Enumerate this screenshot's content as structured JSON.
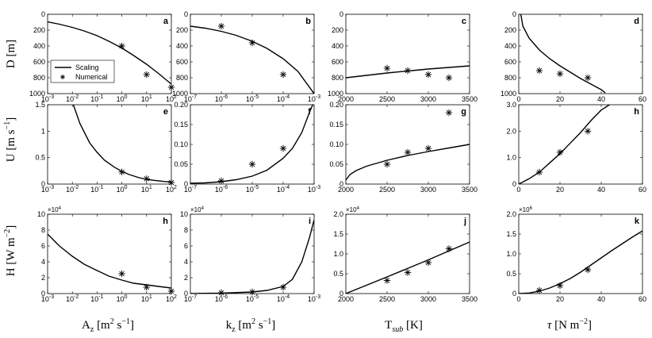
{
  "legend": {
    "line_label": "Scaling",
    "marker_label": "Numerical"
  },
  "row_labels": [
    {
      "main": "D",
      "unit": "[m]"
    },
    {
      "main": "U",
      "unit": "[m s",
      "sup": "−1",
      "close": "]"
    },
    {
      "main": "H",
      "unit": "[W m",
      "sup": "−2",
      "close": "]"
    }
  ],
  "col_labels": [
    {
      "main": "A",
      "sub": "z",
      "unit": "[m",
      "sup1": "2",
      "mid": " s",
      "sup2": "−1",
      "close": "]"
    },
    {
      "main": "k",
      "sub": "z",
      "unit": "[m",
      "sup1": "2",
      "mid": " s",
      "sup2": "−1",
      "close": "]"
    },
    {
      "main": "T",
      "sub": "sub",
      "unit": "[K]"
    },
    {
      "main": "τ",
      "unit": "[N m",
      "sup1": "−2",
      "close": "]"
    }
  ],
  "chart_data": [
    {
      "id": "a",
      "type": "line+scatter",
      "xscale": "log",
      "xlim": [
        0.001,
        100
      ],
      "ylim": [
        0,
        1000
      ],
      "yreverse": true,
      "xticks": [
        {
          "v": 0.001,
          "b": "10",
          "e": "-3"
        },
        {
          "v": 0.01,
          "b": "10",
          "e": "-2"
        },
        {
          "v": 0.1,
          "b": "10",
          "e": "-1"
        },
        {
          "v": 1,
          "b": "10",
          "e": "0"
        },
        {
          "v": 10,
          "b": "10",
          "e": "1"
        },
        {
          "v": 100,
          "b": "10",
          "e": "2"
        }
      ],
      "yticks": [
        {
          "v": 0,
          "t": "0"
        },
        {
          "v": 200,
          "t": "200"
        },
        {
          "v": 400,
          "t": "400"
        },
        {
          "v": 600,
          "t": "600"
        },
        {
          "v": 800,
          "t": "800"
        },
        {
          "v": 1000,
          "t": "1000"
        }
      ],
      "line": {
        "x": [
          0.001,
          0.003,
          0.01,
          0.03,
          0.1,
          0.3,
          1,
          3,
          10,
          30,
          100
        ],
        "y": [
          95,
          125,
          165,
          210,
          270,
          340,
          425,
          520,
          630,
          745,
          880
        ]
      },
      "points": {
        "x": [
          1,
          10,
          100
        ],
        "y": [
          400,
          760,
          920
        ]
      },
      "legend": true
    },
    {
      "id": "b",
      "type": "line+scatter",
      "xscale": "log",
      "xlim": [
        1e-07,
        0.001
      ],
      "ylim": [
        0,
        1000
      ],
      "yreverse": true,
      "xticks": [
        {
          "v": 1e-07,
          "b": "10",
          "e": "-7"
        },
        {
          "v": 1e-06,
          "b": "10",
          "e": "-6"
        },
        {
          "v": 1e-05,
          "b": "10",
          "e": "-5"
        },
        {
          "v": 0.0001,
          "b": "10",
          "e": "-4"
        },
        {
          "v": 0.001,
          "b": "10",
          "e": "-3"
        }
      ],
      "yticks": [
        {
          "v": 0,
          "t": "0"
        },
        {
          "v": 200,
          "t": "200"
        },
        {
          "v": 400,
          "t": "400"
        },
        {
          "v": 600,
          "t": "600"
        },
        {
          "v": 800,
          "t": "800"
        },
        {
          "v": 1000,
          "t": "1000"
        }
      ],
      "line": {
        "x": [
          1e-07,
          3e-07,
          1e-06,
          3e-06,
          1e-05,
          3e-05,
          0.0001,
          0.0003,
          0.001
        ],
        "y": [
          150,
          175,
          215,
          265,
          340,
          430,
          560,
          720,
          1000
        ]
      },
      "points": {
        "x": [
          1e-06,
          1e-05,
          0.0001
        ],
        "y": [
          150,
          360,
          760
        ]
      }
    },
    {
      "id": "c",
      "type": "line+scatter",
      "xscale": "linear",
      "xlim": [
        2000,
        3500
      ],
      "ylim": [
        0,
        1000
      ],
      "yreverse": true,
      "xticks": [
        {
          "v": 2000,
          "t": "2000"
        },
        {
          "v": 2500,
          "t": "2500"
        },
        {
          "v": 3000,
          "t": "3000"
        },
        {
          "v": 3500,
          "t": "3500"
        }
      ],
      "yticks": [
        {
          "v": 0,
          "t": "0"
        },
        {
          "v": 200,
          "t": "200"
        },
        {
          "v": 400,
          "t": "400"
        },
        {
          "v": 600,
          "t": "600"
        },
        {
          "v": 800,
          "t": "800"
        },
        {
          "v": 1000,
          "t": "1000"
        }
      ],
      "line": {
        "x": [
          2000,
          2250,
          2500,
          2750,
          3000,
          3250,
          3500
        ],
        "y": [
          800,
          770,
          740,
          715,
          690,
          670,
          650
        ]
      },
      "points": {
        "x": [
          2500,
          2750,
          3000,
          3250
        ],
        "y": [
          680,
          710,
          760,
          800
        ]
      }
    },
    {
      "id": "d",
      "type": "line+scatter",
      "xscale": "linear",
      "xlim": [
        0,
        60
      ],
      "ylim": [
        0,
        1000
      ],
      "yreverse": true,
      "xticks": [
        {
          "v": 0,
          "t": "0"
        },
        {
          "v": 20,
          "t": "20"
        },
        {
          "v": 40,
          "t": "40"
        },
        {
          "v": 60,
          "t": "60"
        }
      ],
      "yticks": [
        {
          "v": 0,
          "t": "0"
        },
        {
          "v": 200,
          "t": "200"
        },
        {
          "v": 400,
          "t": "400"
        },
        {
          "v": 600,
          "t": "600"
        },
        {
          "v": 800,
          "t": "800"
        },
        {
          "v": 1000,
          "t": "1000"
        }
      ],
      "line": {
        "x": [
          1,
          2,
          5,
          10,
          15,
          20,
          25,
          30,
          35,
          40,
          42
        ],
        "y": [
          0,
          150,
          300,
          450,
          560,
          650,
          730,
          810,
          880,
          950,
          990
        ]
      },
      "points": {
        "x": [
          10,
          20,
          33.5
        ],
        "y": [
          710,
          750,
          800
        ]
      }
    },
    {
      "id": "e",
      "type": "line+scatter",
      "xscale": "log",
      "xlim": [
        0.001,
        100
      ],
      "ylim": [
        0,
        1.5
      ],
      "xticks": [
        {
          "v": 0.001,
          "b": "10",
          "e": "-3"
        },
        {
          "v": 0.01,
          "b": "10",
          "e": "-2"
        },
        {
          "v": 0.1,
          "b": "10",
          "e": "-1"
        },
        {
          "v": 1,
          "b": "10",
          "e": "0"
        },
        {
          "v": 10,
          "b": "10",
          "e": "1"
        },
        {
          "v": 100,
          "b": "10",
          "e": "2"
        }
      ],
      "yticks": [
        {
          "v": 0,
          "t": "0"
        },
        {
          "v": 0.5,
          "t": "0.5"
        },
        {
          "v": 1,
          "t": "1"
        },
        {
          "v": 1.5,
          "t": "1.5"
        }
      ],
      "line": {
        "x": [
          0.011,
          0.02,
          0.05,
          0.1,
          0.2,
          0.5,
          1,
          2,
          5,
          10,
          20,
          50,
          100
        ],
        "y": [
          1.5,
          1.15,
          0.78,
          0.6,
          0.45,
          0.32,
          0.24,
          0.18,
          0.12,
          0.09,
          0.07,
          0.05,
          0.04
        ]
      },
      "points": {
        "x": [
          1,
          10,
          100
        ],
        "y": [
          0.23,
          0.1,
          0.03
        ]
      }
    },
    {
      "id": "f",
      "type": "line+scatter",
      "xscale": "log",
      "xlim": [
        1e-07,
        0.001
      ],
      "ylim": [
        0,
        0.2
      ],
      "xticks": [
        {
          "v": 1e-07,
          "b": "10",
          "e": "-7"
        },
        {
          "v": 1e-06,
          "b": "10",
          "e": "-6"
        },
        {
          "v": 1e-05,
          "b": "10",
          "e": "-5"
        },
        {
          "v": 0.0001,
          "b": "10",
          "e": "-4"
        },
        {
          "v": 0.001,
          "b": "10",
          "e": "-3"
        }
      ],
      "yticks": [
        {
          "v": 0,
          "t": "0"
        },
        {
          "v": 0.05,
          "t": "0.05"
        },
        {
          "v": 0.1,
          "t": "0.10"
        },
        {
          "v": 0.15,
          "t": "0.15"
        },
        {
          "v": 0.2,
          "t": "0.20"
        }
      ],
      "line": {
        "x": [
          1e-07,
          3e-07,
          1e-06,
          3e-06,
          1e-05,
          3e-05,
          0.0001,
          0.0002,
          0.0004,
          0.0007,
          0.0009
        ],
        "y": [
          0.002,
          0.003,
          0.006,
          0.011,
          0.02,
          0.035,
          0.065,
          0.09,
          0.13,
          0.18,
          0.2
        ]
      },
      "points": {
        "x": [
          1e-06,
          1e-05,
          0.0001
        ],
        "y": [
          0.008,
          0.05,
          0.09
        ]
      }
    },
    {
      "id": "g",
      "type": "line+scatter",
      "xscale": "linear",
      "xlim": [
        2000,
        3500
      ],
      "ylim": [
        0,
        0.2
      ],
      "xticks": [
        {
          "v": 2000,
          "t": "2000"
        },
        {
          "v": 2500,
          "t": "2500"
        },
        {
          "v": 3000,
          "t": "3000"
        },
        {
          "v": 3500,
          "t": "3500"
        }
      ],
      "yticks": [
        {
          "v": 0,
          "t": "0"
        },
        {
          "v": 0.05,
          "t": "0.05"
        },
        {
          "v": 0.1,
          "t": "0.10"
        },
        {
          "v": 0.15,
          "t": "0.15"
        },
        {
          "v": 0.2,
          "t": "0.20"
        }
      ],
      "line": {
        "x": [
          2000,
          2050,
          2125,
          2250,
          2500,
          2750,
          3000,
          3250,
          3500
        ],
        "y": [
          0.01,
          0.024,
          0.034,
          0.045,
          0.06,
          0.072,
          0.082,
          0.091,
          0.1
        ]
      },
      "points": {
        "x": [
          2500,
          2750,
          3000,
          3250
        ],
        "y": [
          0.05,
          0.08,
          0.09,
          0.18
        ]
      }
    },
    {
      "id": "h",
      "type": "line+scatter",
      "xscale": "linear",
      "xlim": [
        0,
        60
      ],
      "ylim": [
        0,
        3
      ],
      "xticks": [
        {
          "v": 0,
          "t": "0"
        },
        {
          "v": 20,
          "t": "20"
        },
        {
          "v": 40,
          "t": "40"
        },
        {
          "v": 60,
          "t": "60"
        }
      ],
      "yticks": [
        {
          "v": 0,
          "t": "0"
        },
        {
          "v": 1,
          "t": "1.0"
        },
        {
          "v": 2,
          "t": "2.0"
        },
        {
          "v": 3,
          "t": "3.0"
        }
      ],
      "line": {
        "x": [
          0,
          5,
          10,
          15,
          20,
          25,
          30,
          35,
          40,
          44
        ],
        "y": [
          0,
          0.2,
          0.45,
          0.8,
          1.15,
          1.55,
          1.95,
          2.4,
          2.8,
          3.0
        ]
      },
      "points": {
        "x": [
          10,
          20,
          33.5
        ],
        "y": [
          0.45,
          1.2,
          2.0
        ]
      }
    },
    {
      "id": "h",
      "type": "line+scatter",
      "xscale": "log",
      "xlim": [
        0.001,
        100
      ],
      "ylim": [
        0,
        100000
      ],
      "multiplier": {
        "b": "×10",
        "e": "4"
      },
      "xticks": [
        {
          "v": 0.001,
          "b": "10",
          "e": "-3"
        },
        {
          "v": 0.01,
          "b": "10",
          "e": "-2"
        },
        {
          "v": 0.1,
          "b": "10",
          "e": "-1"
        },
        {
          "v": 1,
          "b": "10",
          "e": "0"
        },
        {
          "v": 10,
          "b": "10",
          "e": "1"
        },
        {
          "v": 100,
          "b": "10",
          "e": "2"
        }
      ],
      "yticks": [
        {
          "v": 0,
          "t": "0"
        },
        {
          "v": 20000,
          "t": "2"
        },
        {
          "v": 40000,
          "t": "4"
        },
        {
          "v": 60000,
          "t": "6"
        },
        {
          "v": 80000,
          "t": "8"
        },
        {
          "v": 100000,
          "t": "10"
        }
      ],
      "line": {
        "x": [
          0.001,
          0.003,
          0.01,
          0.03,
          0.1,
          0.3,
          1,
          3,
          10,
          30,
          100
        ],
        "y": [
          75000,
          60000,
          47000,
          37000,
          29000,
          22000,
          17000,
          13000,
          11000,
          9000,
          7000
        ]
      },
      "points": {
        "x": [
          1,
          10,
          100
        ],
        "y": [
          25000,
          8000,
          3000
        ]
      }
    },
    {
      "id": "i",
      "type": "line+scatter",
      "xscale": "log",
      "xlim": [
        1e-07,
        0.001
      ],
      "ylim": [
        0,
        100000
      ],
      "multiplier": {
        "b": "×10",
        "e": "4"
      },
      "xticks": [
        {
          "v": 1e-07,
          "b": "10",
          "e": "-7"
        },
        {
          "v": 1e-06,
          "b": "10",
          "e": "-6"
        },
        {
          "v": 1e-05,
          "b": "10",
          "e": "-5"
        },
        {
          "v": 0.0001,
          "b": "10",
          "e": "-4"
        },
        {
          "v": 0.001,
          "b": "10",
          "e": "-3"
        }
      ],
      "yticks": [
        {
          "v": 0,
          "t": "0"
        },
        {
          "v": 20000,
          "t": "2"
        },
        {
          "v": 40000,
          "t": "4"
        },
        {
          "v": 60000,
          "t": "6"
        },
        {
          "v": 80000,
          "t": "8"
        },
        {
          "v": 100000,
          "t": "10"
        }
      ],
      "line": {
        "x": [
          1e-07,
          1e-06,
          1e-05,
          3e-05,
          0.0001,
          0.0002,
          0.0004,
          0.0007,
          0.001
        ],
        "y": [
          100,
          500,
          2000,
          4000,
          9000,
          18000,
          40000,
          70000,
          93000
        ]
      },
      "points": {
        "x": [
          1e-06,
          1e-05,
          0.0001
        ],
        "y": [
          1000,
          2000,
          8000
        ]
      }
    },
    {
      "id": "j",
      "type": "line+scatter",
      "xscale": "linear",
      "xlim": [
        2000,
        3500
      ],
      "ylim": [
        0,
        20000
      ],
      "multiplier": {
        "b": "×10",
        "e": "4"
      },
      "xticks": [
        {
          "v": 2000,
          "t": "2000"
        },
        {
          "v": 2500,
          "t": "2500"
        },
        {
          "v": 3000,
          "t": "3000"
        },
        {
          "v": 3500,
          "t": "3500"
        }
      ],
      "yticks": [
        {
          "v": 0,
          "t": "0"
        },
        {
          "v": 5000,
          "t": "0.5"
        },
        {
          "v": 10000,
          "t": "1.0"
        },
        {
          "v": 15000,
          "t": "1.5"
        },
        {
          "v": 20000,
          "t": "2.0"
        }
      ],
      "line": {
        "x": [
          2000,
          2500,
          3000,
          3500
        ],
        "y": [
          0,
          4200,
          8500,
          13000
        ]
      },
      "points": {
        "x": [
          2500,
          2750,
          3000,
          3250
        ],
        "y": [
          3300,
          5300,
          7800,
          11300
        ]
      }
    },
    {
      "id": "k",
      "type": "line+scatter",
      "xscale": "linear",
      "xlim": [
        0,
        60
      ],
      "ylim": [
        0,
        2000000
      ],
      "multiplier": {
        "b": "×10",
        "e": "6"
      },
      "xticks": [
        {
          "v": 0,
          "t": "0"
        },
        {
          "v": 20,
          "t": "20"
        },
        {
          "v": 40,
          "t": "40"
        },
        {
          "v": 60,
          "t": "60"
        }
      ],
      "yticks": [
        {
          "v": 0,
          "t": "0"
        },
        {
          "v": 500000,
          "t": "0.5"
        },
        {
          "v": 1000000,
          "t": "1.0"
        },
        {
          "v": 1500000,
          "t": "1.5"
        },
        {
          "v": 2000000,
          "t": "2.0"
        }
      ],
      "line": {
        "x": [
          0,
          5,
          10,
          15,
          20,
          25,
          30,
          35,
          40,
          45,
          50,
          55,
          60
        ],
        "y": [
          0,
          15000,
          60000,
          140000,
          250000,
          380000,
          540000,
          720000,
          900000,
          1080000,
          1250000,
          1420000,
          1580000
        ]
      },
      "points": {
        "x": [
          10,
          20,
          33.5
        ],
        "y": [
          80000,
          200000,
          600000
        ]
      }
    }
  ]
}
